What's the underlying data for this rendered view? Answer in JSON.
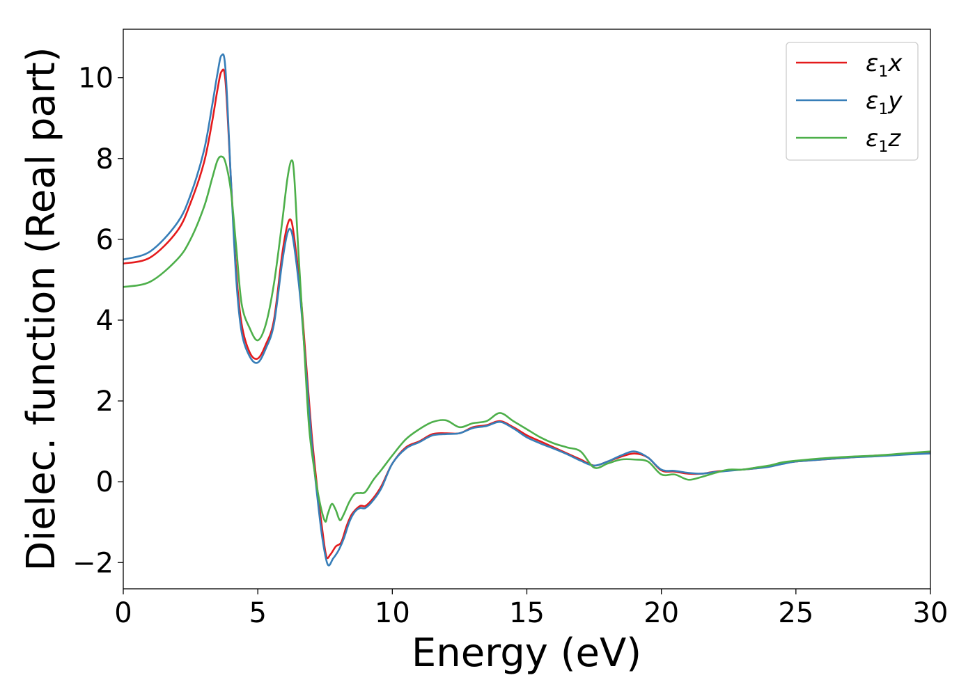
{
  "chart_data": {
    "type": "line",
    "title": "",
    "xlabel": "Energy (eV)",
    "ylabel": "Dielec. function (Real part)",
    "xlim": [
      0,
      30
    ],
    "ylim": [
      -2.65,
      11.2
    ],
    "xticks": [
      0,
      5,
      10,
      15,
      20,
      25,
      30
    ],
    "yticks": [
      -2,
      0,
      2,
      4,
      6,
      8,
      10
    ],
    "grid": false,
    "legend_position": "top-right",
    "series": [
      {
        "name": "ε1x",
        "name_parts": {
          "main": "ε",
          "sub": "1",
          "tail": "x"
        },
        "color": "#e41a1c",
        "x": [
          0,
          1,
          2,
          2.5,
          3,
          3.3,
          3.5,
          3.65,
          3.8,
          4.0,
          4.2,
          4.4,
          4.7,
          5.0,
          5.3,
          5.6,
          5.9,
          6.1,
          6.25,
          6.4,
          6.6,
          6.8,
          7.0,
          7.2,
          7.4,
          7.55,
          7.7,
          7.9,
          8.1,
          8.3,
          8.5,
          8.8,
          9.0,
          9.3,
          9.6,
          10,
          10.5,
          11,
          11.5,
          12,
          12.5,
          13,
          13.5,
          14,
          14.5,
          15,
          15.5,
          16,
          16.5,
          17,
          17.5,
          18,
          18.5,
          19,
          19.5,
          20,
          20.5,
          21,
          21.5,
          22,
          22.5,
          23,
          23.5,
          24,
          24.5,
          25,
          26,
          27,
          28,
          29,
          30
        ],
        "y": [
          5.4,
          5.55,
          6.2,
          6.9,
          7.9,
          8.9,
          9.7,
          10.15,
          9.9,
          7.5,
          5.2,
          3.9,
          3.2,
          3.05,
          3.4,
          4.0,
          5.6,
          6.35,
          6.45,
          5.8,
          4.6,
          2.9,
          1.2,
          -0.1,
          -1.2,
          -1.85,
          -1.8,
          -1.6,
          -1.5,
          -1.1,
          -0.8,
          -0.6,
          -0.6,
          -0.4,
          -0.1,
          0.45,
          0.85,
          1.0,
          1.18,
          1.2,
          1.2,
          1.35,
          1.4,
          1.5,
          1.35,
          1.15,
          1.0,
          0.85,
          0.7,
          0.55,
          0.4,
          0.5,
          0.62,
          0.7,
          0.6,
          0.28,
          0.25,
          0.2,
          0.2,
          0.25,
          0.28,
          0.3,
          0.33,
          0.38,
          0.45,
          0.5,
          0.55,
          0.6,
          0.65,
          0.68,
          0.72
        ]
      },
      {
        "name": "ε1y",
        "name_parts": {
          "main": "ε",
          "sub": "1",
          "tail": "y"
        },
        "color": "#377eb8",
        "x": [
          0,
          1,
          2,
          2.5,
          3,
          3.3,
          3.5,
          3.65,
          3.8,
          4.0,
          4.2,
          4.4,
          4.7,
          5.0,
          5.3,
          5.6,
          5.9,
          6.1,
          6.25,
          6.4,
          6.6,
          6.8,
          7.0,
          7.2,
          7.4,
          7.6,
          7.8,
          8.0,
          8.2,
          8.4,
          8.6,
          8.8,
          9.0,
          9.3,
          9.6,
          10,
          10.5,
          11,
          11.5,
          12,
          12.5,
          13,
          13.5,
          14,
          14.5,
          15,
          15.5,
          16,
          16.5,
          17,
          17.5,
          18,
          18.5,
          19,
          19.5,
          20,
          20.5,
          21,
          21.5,
          22,
          22.5,
          23,
          23.5,
          24,
          24.5,
          25,
          26,
          27,
          28,
          29,
          30
        ],
        "y": [
          5.5,
          5.7,
          6.4,
          7.1,
          8.2,
          9.3,
          10.1,
          10.55,
          10.2,
          7.5,
          5.0,
          3.7,
          3.1,
          2.95,
          3.3,
          3.9,
          5.4,
          6.15,
          6.2,
          5.6,
          4.4,
          2.7,
          1.0,
          -0.3,
          -1.4,
          -2.05,
          -1.9,
          -1.7,
          -1.4,
          -1.0,
          -0.75,
          -0.65,
          -0.65,
          -0.45,
          -0.15,
          0.45,
          0.82,
          0.98,
          1.15,
          1.18,
          1.2,
          1.33,
          1.38,
          1.48,
          1.32,
          1.1,
          0.95,
          0.82,
          0.68,
          0.52,
          0.4,
          0.5,
          0.65,
          0.75,
          0.6,
          0.3,
          0.27,
          0.22,
          0.2,
          0.24,
          0.27,
          0.3,
          0.33,
          0.37,
          0.44,
          0.5,
          0.55,
          0.6,
          0.63,
          0.67,
          0.7
        ]
      },
      {
        "name": "ε1z",
        "name_parts": {
          "main": "ε",
          "sub": "1",
          "tail": "z"
        },
        "color": "#4daf4a",
        "x": [
          0,
          1,
          2,
          2.5,
          3,
          3.3,
          3.5,
          3.65,
          3.8,
          4.0,
          4.2,
          4.4,
          4.7,
          5.0,
          5.3,
          5.6,
          5.9,
          6.1,
          6.25,
          6.35,
          6.5,
          6.7,
          6.9,
          7.1,
          7.3,
          7.5,
          7.6,
          7.75,
          7.9,
          8.05,
          8.2,
          8.4,
          8.6,
          8.8,
          9.0,
          9.3,
          9.6,
          10,
          10.5,
          11,
          11.5,
          12,
          12.5,
          13,
          13.5,
          14,
          14.5,
          15,
          15.5,
          16,
          16.5,
          17,
          17.5,
          18,
          18.5,
          19,
          19.5,
          20,
          20.5,
          21,
          21.5,
          22,
          22.5,
          23,
          23.5,
          24,
          24.5,
          25,
          26,
          27,
          28,
          29,
          30
        ],
        "y": [
          4.82,
          4.95,
          5.5,
          6.0,
          6.8,
          7.5,
          7.95,
          8.05,
          7.9,
          7.2,
          5.8,
          4.4,
          3.8,
          3.5,
          3.9,
          4.9,
          6.4,
          7.5,
          7.95,
          7.6,
          5.8,
          3.6,
          1.4,
          0.3,
          -0.5,
          -0.98,
          -0.8,
          -0.55,
          -0.7,
          -0.95,
          -0.8,
          -0.5,
          -0.3,
          -0.28,
          -0.25,
          0.05,
          0.3,
          0.65,
          1.05,
          1.3,
          1.48,
          1.52,
          1.35,
          1.45,
          1.5,
          1.7,
          1.5,
          1.3,
          1.1,
          0.95,
          0.85,
          0.75,
          0.35,
          0.45,
          0.55,
          0.55,
          0.5,
          0.18,
          0.18,
          0.05,
          0.12,
          0.22,
          0.3,
          0.3,
          0.35,
          0.4,
          0.48,
          0.52,
          0.58,
          0.62,
          0.65,
          0.7,
          0.75
        ]
      }
    ]
  }
}
